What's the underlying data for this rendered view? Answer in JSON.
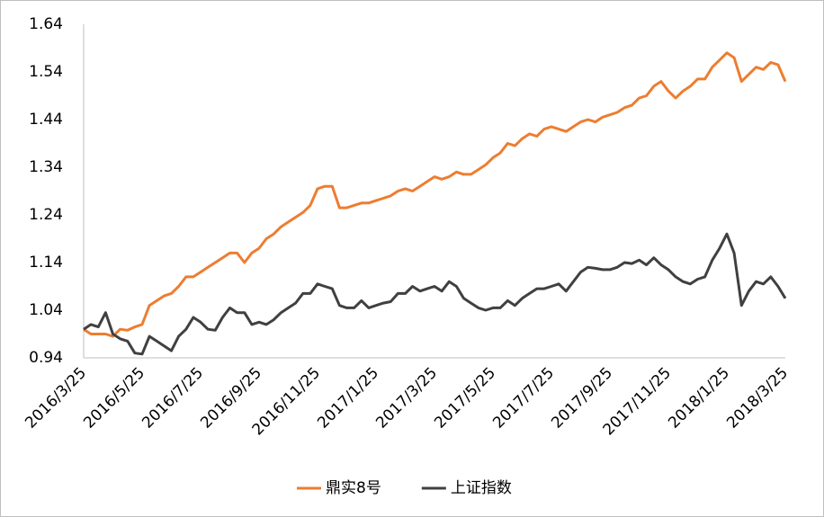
{
  "chart_data": {
    "type": "line",
    "categories": [
      "2016/3/25",
      null,
      null,
      null,
      null,
      null,
      null,
      null,
      "2016/5/25",
      null,
      null,
      null,
      null,
      null,
      null,
      null,
      "2016/7/25",
      null,
      null,
      null,
      null,
      null,
      null,
      null,
      "2016/9/25",
      null,
      null,
      null,
      null,
      null,
      null,
      null,
      "2016/11/25",
      null,
      null,
      null,
      null,
      null,
      null,
      null,
      "2017/1/25",
      null,
      null,
      null,
      null,
      null,
      null,
      null,
      "2017/3/25",
      null,
      null,
      null,
      null,
      null,
      null,
      null,
      "2017/5/25",
      null,
      null,
      null,
      null,
      null,
      null,
      null,
      "2017/7/25",
      null,
      null,
      null,
      null,
      null,
      null,
      null,
      "2017/9/25",
      null,
      null,
      null,
      null,
      null,
      null,
      null,
      "2017/11/25",
      null,
      null,
      null,
      null,
      null,
      null,
      null,
      "2018/1/25",
      null,
      null,
      null,
      null,
      null,
      null,
      null,
      "2018/3/25"
    ],
    "series": [
      {
        "name": "鼎实8号",
        "color": "#ed7d31",
        "values": [
          1.0,
          0.99,
          0.99,
          0.99,
          0.985,
          1.0,
          0.998,
          1.005,
          1.01,
          1.05,
          1.06,
          1.07,
          1.075,
          1.09,
          1.11,
          1.11,
          1.12,
          1.13,
          1.14,
          1.15,
          1.16,
          1.16,
          1.14,
          1.16,
          1.17,
          1.19,
          1.2,
          1.215,
          1.225,
          1.235,
          1.245,
          1.26,
          1.295,
          1.3,
          1.3,
          1.255,
          1.255,
          1.26,
          1.265,
          1.265,
          1.27,
          1.275,
          1.28,
          1.29,
          1.295,
          1.29,
          1.3,
          1.31,
          1.32,
          1.315,
          1.32,
          1.33,
          1.325,
          1.325,
          1.335,
          1.345,
          1.36,
          1.37,
          1.39,
          1.385,
          1.4,
          1.41,
          1.405,
          1.42,
          1.425,
          1.42,
          1.415,
          1.425,
          1.435,
          1.44,
          1.435,
          1.445,
          1.45,
          1.455,
          1.465,
          1.47,
          1.485,
          1.49,
          1.51,
          1.52,
          1.5,
          1.485,
          1.5,
          1.51,
          1.525,
          1.525,
          1.55,
          1.565,
          1.58,
          1.57,
          1.52,
          1.535,
          1.55,
          1.545,
          1.56,
          1.555,
          1.52
        ]
      },
      {
        "name": "上证指数",
        "color": "#404040",
        "values": [
          1.0,
          1.01,
          1.005,
          1.035,
          0.99,
          0.98,
          0.975,
          0.95,
          0.948,
          0.985,
          0.975,
          0.965,
          0.955,
          0.985,
          1.0,
          1.025,
          1.015,
          1.0,
          0.998,
          1.025,
          1.045,
          1.035,
          1.035,
          1.01,
          1.015,
          1.01,
          1.02,
          1.035,
          1.045,
          1.055,
          1.075,
          1.075,
          1.095,
          1.09,
          1.085,
          1.05,
          1.045,
          1.045,
          1.06,
          1.045,
          1.05,
          1.055,
          1.058,
          1.075,
          1.075,
          1.09,
          1.08,
          1.085,
          1.09,
          1.08,
          1.1,
          1.09,
          1.065,
          1.055,
          1.045,
          1.04,
          1.045,
          1.045,
          1.06,
          1.05,
          1.065,
          1.075,
          1.085,
          1.085,
          1.09,
          1.095,
          1.08,
          1.1,
          1.12,
          1.13,
          1.128,
          1.125,
          1.125,
          1.13,
          1.14,
          1.138,
          1.145,
          1.135,
          1.15,
          1.135,
          1.125,
          1.11,
          1.1,
          1.095,
          1.105,
          1.11,
          1.145,
          1.17,
          1.2,
          1.16,
          1.05,
          1.08,
          1.1,
          1.095,
          1.11,
          1.09,
          1.065
        ]
      }
    ],
    "ylim": [
      0.94,
      1.64
    ],
    "yticks": [
      0.94,
      1.04,
      1.14,
      1.24,
      1.34,
      1.44,
      1.54,
      1.64
    ],
    "grid": false,
    "legend": "bottom"
  }
}
